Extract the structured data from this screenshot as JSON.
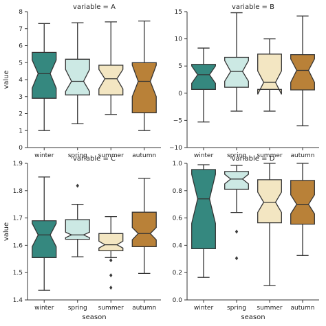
{
  "chart_data": [
    {
      "type": "boxplot",
      "title": "variable = A",
      "xlabel": "",
      "ylabel": "value",
      "ylim": [
        0,
        8
      ],
      "yticks": [
        "0",
        "1",
        "2",
        "3",
        "4",
        "5",
        "6",
        "7",
        "8"
      ],
      "categories": [
        "winter",
        "spring",
        "summer",
        "autumn"
      ],
      "boxes": [
        {
          "whislo": 1.0,
          "q1": 2.9,
          "med": 4.35,
          "q3": 5.6,
          "whishi": 7.3,
          "cilo": 3.5,
          "cihi": 5.15,
          "fliers": []
        },
        {
          "whislo": 1.4,
          "q1": 3.1,
          "med": 3.9,
          "q3": 5.2,
          "whishi": 7.35,
          "cilo": 3.3,
          "cihi": 4.6,
          "fliers": []
        },
        {
          "whislo": 1.95,
          "q1": 3.1,
          "med": 4.05,
          "q3": 4.85,
          "whishi": 7.4,
          "cilo": 3.45,
          "cihi": 4.6,
          "fliers": []
        },
        {
          "whislo": 1.0,
          "q1": 2.05,
          "med": 3.9,
          "q3": 5.0,
          "whishi": 7.45,
          "cilo": 3.0,
          "cihi": 4.85,
          "fliers": []
        }
      ]
    },
    {
      "type": "boxplot",
      "title": "variable = B",
      "xlabel": "",
      "ylabel": "",
      "ylim": [
        -10,
        15
      ],
      "yticks": [
        "−10",
        "−5",
        "0",
        "5",
        "10",
        "15"
      ],
      "categories": [
        "winter",
        "spring",
        "summer",
        "autumn"
      ],
      "boxes": [
        {
          "whislo": -5.3,
          "q1": 0.7,
          "med": 3.4,
          "q3": 5.3,
          "whishi": 8.3,
          "cilo": 1.8,
          "cihi": 5.0,
          "fliers": []
        },
        {
          "whislo": -3.3,
          "q1": 1.1,
          "med": 4.0,
          "q3": 6.6,
          "whishi": 14.8,
          "cilo": 2.2,
          "cihi": 6.0,
          "fliers": []
        },
        {
          "whislo": -3.3,
          "q1": 0.7,
          "med": 2.0,
          "q3": 7.2,
          "whishi": 10.0,
          "cilo": -0.2,
          "cihi": 4.1,
          "fliers": []
        },
        {
          "whislo": -6.0,
          "q1": 0.6,
          "med": 4.2,
          "q3": 7.1,
          "whishi": 14.2,
          "cilo": 2.0,
          "cihi": 6.3,
          "fliers": []
        }
      ]
    },
    {
      "type": "boxplot",
      "title": "variable = C",
      "xlabel": "season",
      "ylabel": "value",
      "ylim": [
        1.4,
        1.9
      ],
      "yticks": [
        "1.4",
        "1.5",
        "1.6",
        "1.7",
        "1.8",
        "1.9"
      ],
      "categories": [
        "winter",
        "spring",
        "summer",
        "autumn"
      ],
      "boxes": [
        {
          "whislo": 1.435,
          "q1": 1.555,
          "med": 1.638,
          "q3": 1.69,
          "whishi": 1.85,
          "cilo": 1.595,
          "cihi": 1.68,
          "fliers": []
        },
        {
          "whislo": 1.558,
          "q1": 1.622,
          "med": 1.638,
          "q3": 1.694,
          "whishi": 1.75,
          "cilo": 1.628,
          "cihi": 1.648,
          "fliers": [
            1.818
          ]
        },
        {
          "whislo": 1.555,
          "q1": 1.58,
          "med": 1.602,
          "q3": 1.643,
          "whishi": 1.705,
          "cilo": 1.59,
          "cihi": 1.615,
          "fliers": [
            1.545,
            1.49,
            1.445
          ]
        },
        {
          "whislo": 1.497,
          "q1": 1.595,
          "med": 1.643,
          "q3": 1.721,
          "whishi": 1.845,
          "cilo": 1.62,
          "cihi": 1.665,
          "fliers": []
        }
      ]
    },
    {
      "type": "boxplot",
      "title": "variable = D",
      "xlabel": "season",
      "ylabel": "",
      "ylim": [
        0.0,
        1.0
      ],
      "yticks": [
        "0.0",
        "0.2",
        "0.4",
        "0.6",
        "0.8",
        "1.0"
      ],
      "categories": [
        "winter",
        "spring",
        "summer",
        "autumn"
      ],
      "boxes": [
        {
          "whislo": 0.165,
          "q1": 0.375,
          "med": 0.74,
          "q3": 0.955,
          "whishi": 0.99,
          "cilo": 0.56,
          "cihi": 0.92,
          "fliers": []
        },
        {
          "whislo": 0.64,
          "q1": 0.81,
          "med": 0.885,
          "q3": 0.94,
          "whishi": 0.985,
          "cilo": 0.85,
          "cihi": 0.92,
          "fliers": [
            0.5,
            0.305
          ]
        },
        {
          "whislo": 0.105,
          "q1": 0.565,
          "med": 0.715,
          "q3": 0.88,
          "whishi": 1.0,
          "cilo": 0.64,
          "cihi": 0.79,
          "fliers": []
        },
        {
          "whislo": 0.325,
          "q1": 0.555,
          "med": 0.7,
          "q3": 0.875,
          "whishi": 1.0,
          "cilo": 0.63,
          "cihi": 0.77,
          "fliers": []
        }
      ]
    }
  ],
  "colors": {
    "box_fills": [
      "#35887f",
      "#cce9e4",
      "#f3e6c2",
      "#b98138"
    ],
    "line": "#333333",
    "axis": "#333333"
  }
}
